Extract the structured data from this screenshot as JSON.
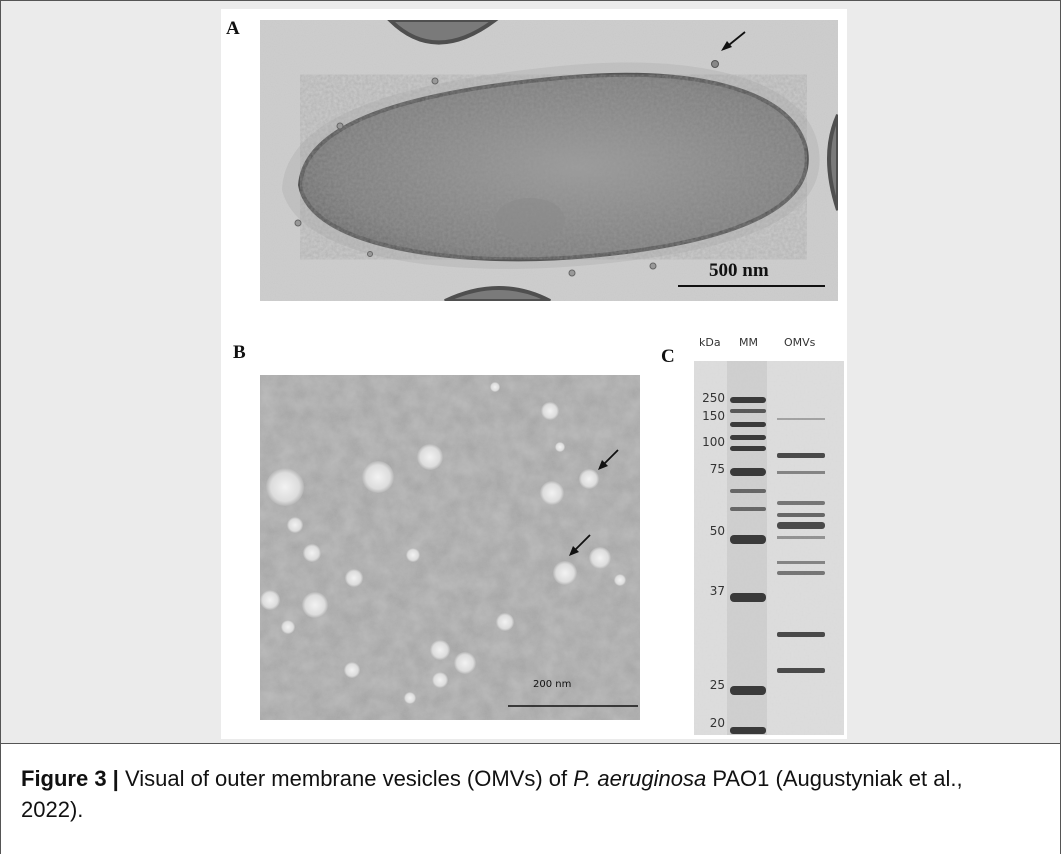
{
  "figure": {
    "panel_a": {
      "letter": "A",
      "scale_bar_label": "500 nm"
    },
    "panel_b": {
      "letter": "B",
      "scale_bar_label": "200 nm"
    },
    "panel_c": {
      "letter": "C",
      "headers": [
        "kDa",
        "MM",
        "OMVs"
      ],
      "marker_sizes": [
        "250",
        "150",
        "100",
        "75",
        "50",
        "37",
        "25",
        "20"
      ]
    }
  },
  "caption": {
    "label": "Figure 3 |",
    "text_before_species": " Visual of outer membrane vesicles (OMVs) of ",
    "species": "P. aeruginosa",
    "text_after_species": " PAO1 (Augustyniak et al., 2022)."
  }
}
